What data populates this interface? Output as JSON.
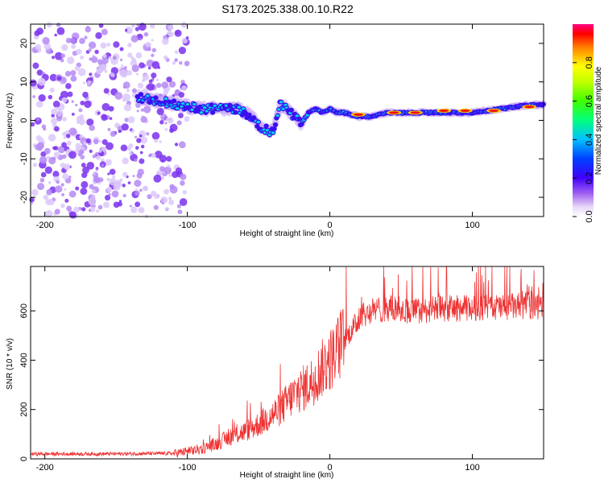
{
  "figure_title": "S173.2025.338.00.10.R22",
  "chart_data": [
    {
      "type": "heatmap",
      "title": "",
      "xlabel": "Height of straight line (km)",
      "ylabel": "Frequency (Hz)",
      "xlim": [
        -210,
        150
      ],
      "ylim": [
        -25,
        25
      ],
      "xticks": [
        -200,
        -100,
        0,
        100
      ],
      "yticks": [
        -20,
        -10,
        0,
        10,
        20
      ],
      "colorbar": {
        "label": "Normalized spectral amplitude",
        "range": [
          0.0,
          1.0
        ],
        "ticks": [
          "0.0",
          "0.2",
          "0.4",
          "0.6",
          "0.8"
        ]
      },
      "ridge": {
        "x": [
          -135,
          -120,
          -105,
          -90,
          -75,
          -65,
          -55,
          -48,
          -40,
          -35,
          -30,
          -25,
          -20,
          -15,
          -10,
          -5,
          0,
          5,
          10,
          20,
          30,
          40,
          60,
          80,
          100,
          120,
          140,
          150
        ],
        "y": [
          6,
          5,
          4,
          3,
          3,
          3,
          1,
          -2,
          -3,
          4,
          3,
          1,
          -1,
          2,
          3,
          2,
          3,
          2,
          2,
          1,
          1,
          2,
          2,
          2,
          2,
          3,
          4,
          4
        ]
      },
      "noise_region_x": [
        -210,
        -100
      ]
    },
    {
      "type": "line",
      "title": "",
      "xlabel": "Height of straight line (km)",
      "ylabel": "SNR (10 * v/v)",
      "xlim": [
        -210,
        150
      ],
      "ylim": [
        0,
        780
      ],
      "xticks": [
        -200,
        -100,
        0,
        100
      ],
      "yticks": [
        0,
        200,
        400,
        600
      ],
      "series": [
        {
          "name": "SNR",
          "color": "#ee3333",
          "envelope_x": [
            -210,
            -160,
            -110,
            -100,
            -90,
            -80,
            -70,
            -60,
            -50,
            -40,
            -35,
            -30,
            -25,
            -20,
            -15,
            -10,
            -5,
            0,
            5,
            10,
            15,
            20,
            25,
            30,
            40,
            60,
            80,
            100,
            120,
            140,
            150
          ],
          "envelope_y": [
            20,
            20,
            22,
            30,
            40,
            60,
            90,
            110,
            140,
            180,
            200,
            230,
            260,
            280,
            300,
            330,
            370,
            400,
            440,
            480,
            520,
            560,
            590,
            600,
            610,
            600,
            610,
            610,
            615,
            620,
            620
          ]
        }
      ]
    }
  ]
}
